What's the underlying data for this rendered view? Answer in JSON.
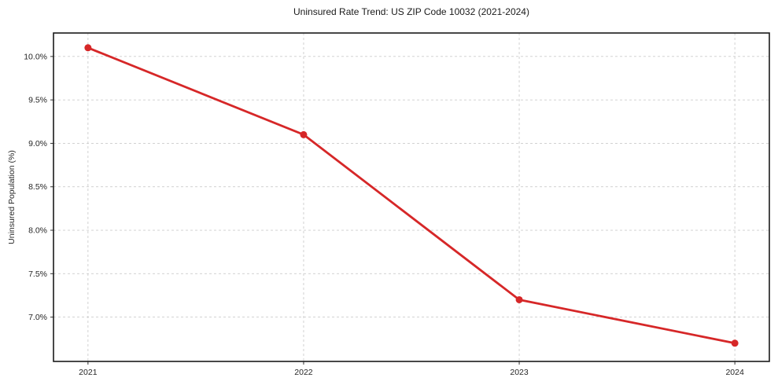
{
  "chart_data": {
    "type": "line",
    "title": "Uninsured Rate Trend: US ZIP Code 10032 (2021-2024)",
    "xlabel": "",
    "ylabel": "Uninsured Population (%)",
    "x": [
      2021,
      2022,
      2023,
      2024
    ],
    "xtick_labels": [
      "2021",
      "2022",
      "2023",
      "2024"
    ],
    "values": [
      10.1,
      9.1,
      7.2,
      6.7
    ],
    "yticks": [
      7.0,
      7.5,
      8.0,
      8.5,
      9.0,
      9.5,
      10.0
    ],
    "ytick_labels": [
      "7.0%",
      "7.5%",
      "8.0%",
      "8.5%",
      "9.0%",
      "9.5%",
      "10.0%"
    ],
    "xlim": [
      2020.84,
      2024.16
    ],
    "ylim": [
      6.49,
      10.27
    ],
    "grid": true,
    "legend": false,
    "line_color": "#d62728",
    "grid_color": "#cccccc",
    "marker": "circle"
  }
}
